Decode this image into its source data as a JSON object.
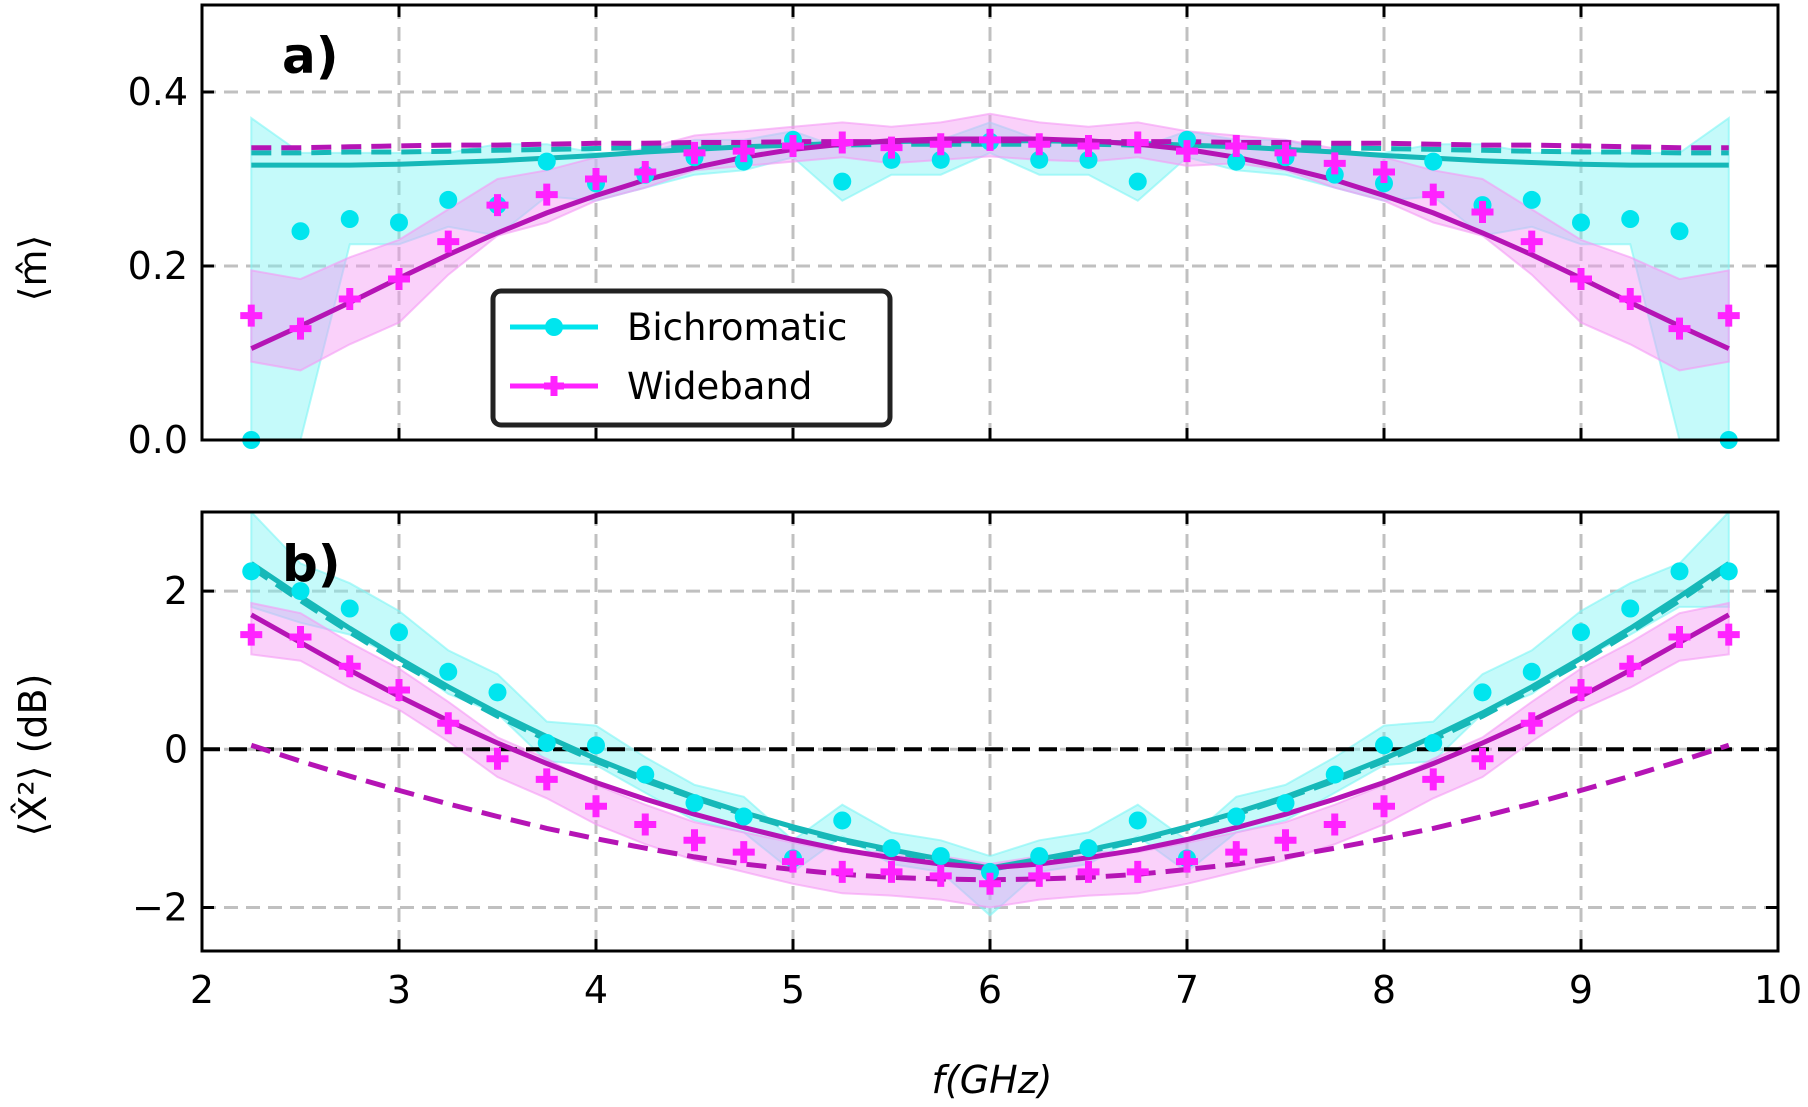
{
  "colors": {
    "bichromatic_marker": "#00e5ee",
    "bichromatic_line": "#16b8b8",
    "bichromatic_band": "#7ef5f5",
    "wideband_marker": "#ff22ff",
    "wideband_line": "#b514b5",
    "wideband_band": "#f59af5",
    "grid": "#c0c0c0",
    "zero_line": "#000000"
  },
  "xlabel": "f(GHz)",
  "legend": {
    "bichromatic": "Bichromatic",
    "wideband": "Wideband",
    "placement": "lower-left"
  },
  "chart_data": [
    {
      "type": "scatter",
      "panel": "a)",
      "ylabel": "⟨m̂⟩",
      "xlim": [
        2,
        10
      ],
      "ylim": [
        0,
        0.5
      ],
      "xticks": [
        2,
        3,
        4,
        5,
        6,
        7,
        8,
        9,
        10
      ],
      "yticks": [
        0.0,
        0.2,
        0.4
      ],
      "ytick_labels": [
        "0.0",
        "0.2",
        "0.4"
      ],
      "x": [
        2.25,
        2.5,
        2.75,
        3.0,
        3.25,
        3.5,
        3.75,
        4.0,
        4.25,
        4.5,
        4.75,
        5.0,
        5.25,
        5.5,
        5.75,
        6.0,
        6.25,
        6.5,
        6.75,
        7.0,
        7.25,
        7.5,
        7.75,
        8.0,
        8.25,
        8.5,
        8.75,
        9.0,
        9.25,
        9.5,
        9.75
      ],
      "series": [
        {
          "name": "Bichromatic",
          "values": [
            0.0,
            0.24,
            0.254,
            0.25,
            0.276,
            0.27,
            0.32,
            0.295,
            0.305,
            0.325,
            0.32,
            0.345,
            0.297,
            0.322,
            0.322,
            0.343,
            0.322,
            0.322,
            0.297,
            0.345,
            0.32,
            0.325,
            0.305,
            0.295,
            0.32,
            0.27,
            0.276,
            0.25,
            0.254,
            0.24,
            0.0
          ],
          "band_low": [
            0.0,
            0.0,
            0.225,
            0.225,
            0.245,
            0.235,
            0.28,
            0.275,
            0.29,
            0.305,
            0.31,
            0.325,
            0.275,
            0.305,
            0.305,
            0.33,
            0.305,
            0.305,
            0.275,
            0.325,
            0.31,
            0.305,
            0.29,
            0.275,
            0.28,
            0.235,
            0.245,
            0.225,
            0.225,
            0.0,
            0.0
          ],
          "band_high": [
            0.37,
            0.33,
            0.33,
            0.33,
            0.33,
            0.34,
            0.34,
            0.33,
            0.33,
            0.345,
            0.345,
            0.355,
            0.335,
            0.345,
            0.345,
            0.365,
            0.345,
            0.345,
            0.335,
            0.355,
            0.345,
            0.345,
            0.33,
            0.33,
            0.34,
            0.34,
            0.33,
            0.33,
            0.33,
            0.33,
            0.37
          ],
          "fit_solid": [
            0.316,
            0.316,
            0.316,
            0.317,
            0.319,
            0.321,
            0.324,
            0.327,
            0.331,
            0.334,
            0.337,
            0.339,
            0.341,
            0.343,
            0.344,
            0.344,
            0.344,
            0.343,
            0.341,
            0.339,
            0.337,
            0.334,
            0.331,
            0.327,
            0.324,
            0.321,
            0.319,
            0.317,
            0.316,
            0.316,
            0.316
          ],
          "fit_dashed": [
            0.33,
            0.33,
            0.331,
            0.331,
            0.332,
            0.333,
            0.334,
            0.335,
            0.336,
            0.337,
            0.338,
            0.339,
            0.339,
            0.34,
            0.34,
            0.34,
            0.34,
            0.34,
            0.339,
            0.339,
            0.338,
            0.337,
            0.336,
            0.335,
            0.334,
            0.333,
            0.332,
            0.331,
            0.331,
            0.33,
            0.33
          ]
        },
        {
          "name": "Wideband",
          "values": [
            0.143,
            0.128,
            0.162,
            0.185,
            0.228,
            0.27,
            0.282,
            0.3,
            0.308,
            0.33,
            0.332,
            0.338,
            0.342,
            0.336,
            0.34,
            0.345,
            0.34,
            0.338,
            0.342,
            0.332,
            0.338,
            0.33,
            0.318,
            0.308,
            0.282,
            0.262,
            0.228,
            0.185,
            0.162,
            0.128,
            0.143
          ],
          "band_low": [
            0.09,
            0.08,
            0.11,
            0.135,
            0.19,
            0.235,
            0.25,
            0.275,
            0.29,
            0.31,
            0.315,
            0.32,
            0.325,
            0.318,
            0.322,
            0.326,
            0.322,
            0.32,
            0.325,
            0.315,
            0.318,
            0.31,
            0.29,
            0.275,
            0.25,
            0.235,
            0.19,
            0.135,
            0.11,
            0.08,
            0.09
          ],
          "band_high": [
            0.195,
            0.185,
            0.21,
            0.23,
            0.265,
            0.3,
            0.31,
            0.325,
            0.335,
            0.35,
            0.355,
            0.36,
            0.365,
            0.36,
            0.365,
            0.375,
            0.365,
            0.36,
            0.365,
            0.355,
            0.35,
            0.345,
            0.335,
            0.325,
            0.31,
            0.3,
            0.265,
            0.23,
            0.21,
            0.185,
            0.195
          ],
          "fit_solid": [
            0.105,
            0.131,
            0.158,
            0.186,
            0.213,
            0.238,
            0.261,
            0.281,
            0.299,
            0.313,
            0.325,
            0.334,
            0.34,
            0.344,
            0.346,
            0.346,
            0.346,
            0.344,
            0.34,
            0.334,
            0.325,
            0.313,
            0.299,
            0.281,
            0.261,
            0.238,
            0.213,
            0.186,
            0.158,
            0.131,
            0.105
          ],
          "fit_dashed": [
            0.336,
            0.336,
            0.337,
            0.338,
            0.339,
            0.339,
            0.34,
            0.341,
            0.341,
            0.342,
            0.342,
            0.343,
            0.343,
            0.343,
            0.344,
            0.344,
            0.344,
            0.343,
            0.343,
            0.343,
            0.342,
            0.342,
            0.341,
            0.341,
            0.34,
            0.339,
            0.339,
            0.338,
            0.337,
            0.336,
            0.336
          ]
        }
      ]
    },
    {
      "type": "scatter",
      "panel": "b)",
      "ylabel": "⟨X̂²⟩ (dB)",
      "xlim": [
        2,
        10
      ],
      "ylim": [
        -2.55,
        3.0
      ],
      "xticks": [
        2,
        3,
        4,
        5,
        6,
        7,
        8,
        9,
        10
      ],
      "xtick_labels": [
        "2",
        "3",
        "4",
        "5",
        "6",
        "7",
        "8",
        "9",
        "10"
      ],
      "yticks": [
        -2,
        0,
        2
      ],
      "ytick_labels": [
        "−2",
        "0",
        "2"
      ],
      "hline": 0,
      "x": [
        2.25,
        2.5,
        2.75,
        3.0,
        3.25,
        3.5,
        3.75,
        4.0,
        4.25,
        4.5,
        4.75,
        5.0,
        5.25,
        5.5,
        5.75,
        6.0,
        6.25,
        6.5,
        6.75,
        7.0,
        7.25,
        7.5,
        7.75,
        8.0,
        8.25,
        8.5,
        8.75,
        9.0,
        9.25,
        9.5,
        9.75
      ],
      "series": [
        {
          "name": "Bichromatic",
          "values": [
            2.25,
            2.0,
            1.78,
            1.48,
            0.98,
            0.72,
            0.08,
            0.05,
            -0.32,
            -0.68,
            -0.85,
            -1.38,
            -0.9,
            -1.25,
            -1.35,
            -1.55,
            -1.35,
            -1.25,
            -0.9,
            -1.38,
            -0.85,
            -0.68,
            -0.32,
            0.05,
            0.08,
            0.72,
            0.98,
            1.48,
            1.78,
            2.25,
            2.25
          ],
          "band_low": [
            1.8,
            1.6,
            1.45,
            1.15,
            0.7,
            0.45,
            -0.15,
            -0.2,
            -0.55,
            -0.9,
            -1.05,
            -1.55,
            -1.1,
            -1.45,
            -1.55,
            -2.1,
            -1.55,
            -1.45,
            -1.1,
            -1.55,
            -1.05,
            -0.9,
            -0.55,
            -0.2,
            -0.15,
            0.45,
            0.7,
            1.15,
            1.45,
            1.8,
            1.8
          ],
          "band_high": [
            3.0,
            2.35,
            2.1,
            1.75,
            1.25,
            0.95,
            0.35,
            0.3,
            -0.1,
            -0.45,
            -0.6,
            -1.15,
            -0.7,
            -1.05,
            -1.15,
            -1.35,
            -1.15,
            -1.05,
            -0.7,
            -1.15,
            -0.6,
            -0.45,
            -0.1,
            0.3,
            0.35,
            0.95,
            1.25,
            1.75,
            2.1,
            2.35,
            3.0
          ],
          "fit_solid": [
            2.35,
            1.93,
            1.53,
            1.15,
            0.79,
            0.46,
            0.16,
            -0.12,
            -0.37,
            -0.6,
            -0.8,
            -0.98,
            -1.14,
            -1.27,
            -1.39,
            -1.5,
            -1.39,
            -1.27,
            -1.14,
            -0.98,
            -0.8,
            -0.6,
            -0.37,
            -0.12,
            0.16,
            0.46,
            0.79,
            1.15,
            1.53,
            1.93,
            2.35
          ],
          "fit_dashed": [
            2.3,
            1.88,
            1.48,
            1.1,
            0.75,
            0.42,
            0.12,
            -0.15,
            -0.4,
            -0.62,
            -0.82,
            -1.0,
            -1.16,
            -1.29,
            -1.41,
            -1.52,
            -1.41,
            -1.29,
            -1.16,
            -1.0,
            -0.82,
            -0.62,
            -0.4,
            -0.15,
            0.12,
            0.42,
            0.75,
            1.1,
            1.48,
            1.88,
            2.3
          ]
        },
        {
          "name": "Wideband",
          "values": [
            1.45,
            1.42,
            1.05,
            0.75,
            0.33,
            -0.12,
            -0.38,
            -0.72,
            -0.95,
            -1.15,
            -1.3,
            -1.42,
            -1.55,
            -1.55,
            -1.6,
            -1.7,
            -1.6,
            -1.55,
            -1.55,
            -1.42,
            -1.3,
            -1.15,
            -0.95,
            -0.72,
            -0.38,
            -0.12,
            0.33,
            0.75,
            1.05,
            1.42,
            1.45
          ],
          "band_low": [
            1.2,
            1.12,
            0.78,
            0.5,
            0.1,
            -0.35,
            -0.62,
            -0.95,
            -1.2,
            -1.4,
            -1.55,
            -1.7,
            -1.82,
            -1.85,
            -1.9,
            -2.0,
            -1.9,
            -1.85,
            -1.82,
            -1.7,
            -1.55,
            -1.4,
            -1.2,
            -0.95,
            -0.62,
            -0.35,
            0.1,
            0.5,
            0.78,
            1.12,
            1.2
          ],
          "band_high": [
            1.85,
            1.72,
            1.35,
            1.02,
            0.6,
            0.15,
            -0.12,
            -0.45,
            -0.7,
            -0.92,
            -1.05,
            -1.18,
            -1.3,
            -1.3,
            -1.35,
            -1.45,
            -1.35,
            -1.3,
            -1.3,
            -1.18,
            -1.05,
            -0.92,
            -0.7,
            -0.45,
            -0.12,
            0.15,
            0.6,
            1.02,
            1.35,
            1.72,
            1.85
          ],
          "fit_solid": [
            1.7,
            1.35,
            1.0,
            0.67,
            0.36,
            0.08,
            -0.18,
            -0.42,
            -0.63,
            -0.82,
            -0.99,
            -1.14,
            -1.27,
            -1.37,
            -1.45,
            -1.5,
            -1.45,
            -1.37,
            -1.27,
            -1.14,
            -0.99,
            -0.82,
            -0.63,
            -0.42,
            -0.18,
            0.08,
            0.36,
            0.67,
            1.0,
            1.35,
            1.7
          ],
          "fit_dashed": [
            0.05,
            -0.15,
            -0.34,
            -0.52,
            -0.69,
            -0.85,
            -1.0,
            -1.13,
            -1.25,
            -1.36,
            -1.45,
            -1.52,
            -1.58,
            -1.62,
            -1.64,
            -1.65,
            -1.64,
            -1.62,
            -1.58,
            -1.52,
            -1.45,
            -1.36,
            -1.25,
            -1.13,
            -1.0,
            -0.85,
            -0.69,
            -0.52,
            -0.34,
            -0.15,
            0.05
          ]
        }
      ]
    }
  ]
}
